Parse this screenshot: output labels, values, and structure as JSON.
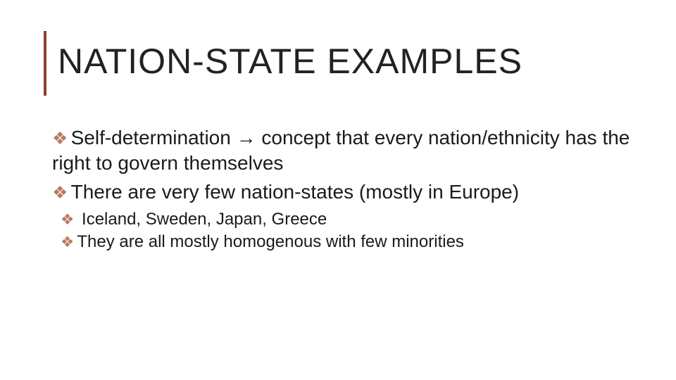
{
  "slide": {
    "title": "NATION-STATE EXAMPLES",
    "accent_color": "#8f3d34",
    "bullet_color": "#b87a5e",
    "bullet_glyph": "❖",
    "arrow_glyph": "→",
    "bullets_lvl1": [
      {
        "pre": "Self-determination ",
        "post": " concept that every nation/ethnicity has the right to govern themselves"
      },
      {
        "text": "There are very few nation-states (mostly in Europe)"
      }
    ],
    "bullets_lvl2": [
      {
        "text": " Iceland, Sweden, Japan, Greece"
      },
      {
        "text": "They are all mostly homogenous with few minorities"
      }
    ],
    "title_fontsize": 50,
    "lvl1_fontsize": 28,
    "lvl2_fontsize": 24,
    "background_color": "#ffffff",
    "text_color": "#1a1a1a"
  }
}
